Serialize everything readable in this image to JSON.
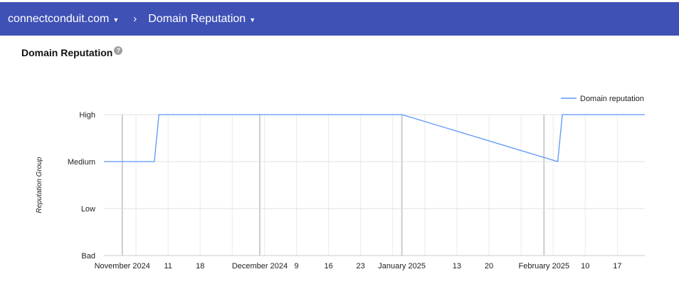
{
  "header": {
    "domain": "connectconduit.com",
    "section": "Domain Reputation",
    "separator": "›"
  },
  "page_title": "Domain Reputation",
  "help_icon": "?",
  "chart_data": {
    "type": "line",
    "title": "",
    "xlabel": "",
    "ylabel": "Reputation Group",
    "y_categories": [
      "Bad",
      "Low",
      "Medium",
      "High"
    ],
    "x_range": [
      "2024-10-28",
      "2025-02-23"
    ],
    "x_ticks": [
      {
        "date": "2024-11-01",
        "label": "November 2024",
        "major": true
      },
      {
        "date": "2024-11-11",
        "label": "11"
      },
      {
        "date": "2024-11-18",
        "label": "18"
      },
      {
        "date": "2024-12-01",
        "label": "December 2024",
        "major": true
      },
      {
        "date": "2024-12-09",
        "label": "9"
      },
      {
        "date": "2024-12-16",
        "label": "16"
      },
      {
        "date": "2024-12-23",
        "label": "23"
      },
      {
        "date": "2025-01-01",
        "label": "January 2025",
        "major": true
      },
      {
        "date": "2025-01-13",
        "label": "13"
      },
      {
        "date": "2025-01-20",
        "label": "20"
      },
      {
        "date": "2025-02-01",
        "label": "February 2025",
        "major": true
      },
      {
        "date": "2025-02-10",
        "label": "10"
      },
      {
        "date": "2025-02-17",
        "label": "17"
      }
    ],
    "series": [
      {
        "name": "Domain reputation",
        "color": "#5b95f9",
        "points": [
          {
            "x": "2024-10-28",
            "y": "Medium"
          },
          {
            "x": "2024-11-08",
            "y": "Medium"
          },
          {
            "x": "2024-11-09",
            "y": "High"
          },
          {
            "x": "2025-01-01",
            "y": "High"
          },
          {
            "x": "2025-02-04",
            "y": "Medium"
          },
          {
            "x": "2025-02-05",
            "y": "High"
          },
          {
            "x": "2025-02-23",
            "y": "High"
          }
        ]
      }
    ],
    "legend": "top-right",
    "grid": true
  }
}
